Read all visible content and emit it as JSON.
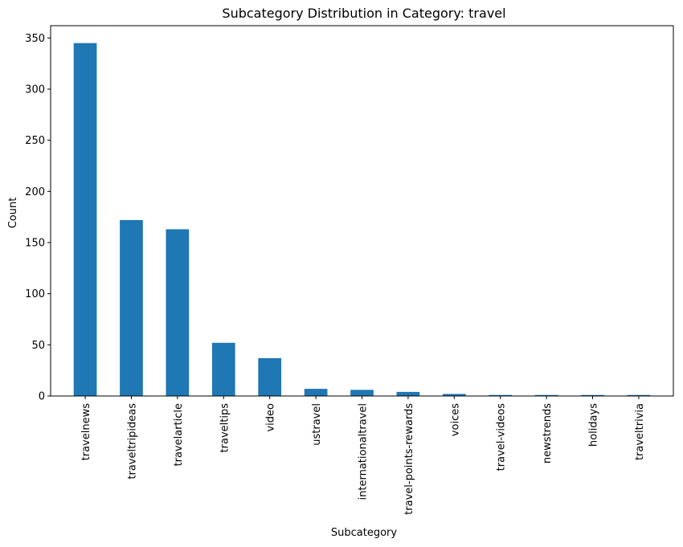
{
  "chart_data": {
    "type": "bar",
    "title": "Subcategory Distribution in Category: travel",
    "xlabel": "Subcategory",
    "ylabel": "Count",
    "categories": [
      "travelnews",
      "traveltripideas",
      "travelarticle",
      "traveltips",
      "video",
      "ustravel",
      "internationaltravel",
      "travel-points-rewards",
      "voices",
      "travel-videos",
      "newstrends",
      "holidays",
      "traveltrivia"
    ],
    "values": [
      345,
      172,
      163,
      52,
      37,
      7,
      6,
      4,
      2,
      1,
      1,
      1,
      1
    ],
    "ylim": [
      0,
      362
    ],
    "yticks": [
      0,
      50,
      100,
      150,
      200,
      250,
      300,
      350
    ],
    "grid": false,
    "legend": "none",
    "colors": {
      "bar": "#1f77b4"
    }
  }
}
